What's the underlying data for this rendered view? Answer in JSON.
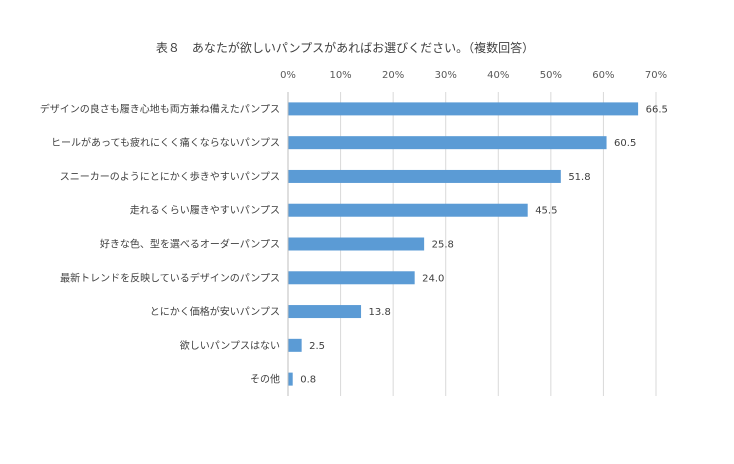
{
  "chart_data": {
    "type": "bar",
    "orientation": "horizontal",
    "title": "表８　あなたが欲しいパンプスがあればお選びください。（複数回答）",
    "xlabel": "",
    "ylabel": "",
    "xlim": [
      0,
      70
    ],
    "xticks": [
      "0%",
      "10%",
      "20%",
      "30%",
      "40%",
      "50%",
      "60%",
      "70%"
    ],
    "x_axis_position": "top",
    "grid": true,
    "bar_color": "#5b9bd5",
    "categories": [
      "デザインの良さも履き心地も両方兼ね備えたパンプス",
      "ヒールがあっても疲れにくく痛くならないパンプス",
      "スニーカーのようにとにかく歩きやすいパンプス",
      "走れるくらい履きやすいパンプス",
      "好きな色、型を選べるオーダーパンプス",
      "最新トレンドを反映しているデザインのパンプス",
      "とにかく価格が安いパンプス",
      "欲しいパンプスはない",
      "その他"
    ],
    "values": [
      66.5,
      60.5,
      51.8,
      45.5,
      25.8,
      24.0,
      13.8,
      2.5,
      0.8
    ],
    "value_labels": [
      "66.5",
      "60.5",
      "51.8",
      "45.5",
      "25.8",
      "24.0",
      "13.8",
      "2.5",
      "0.8"
    ]
  }
}
